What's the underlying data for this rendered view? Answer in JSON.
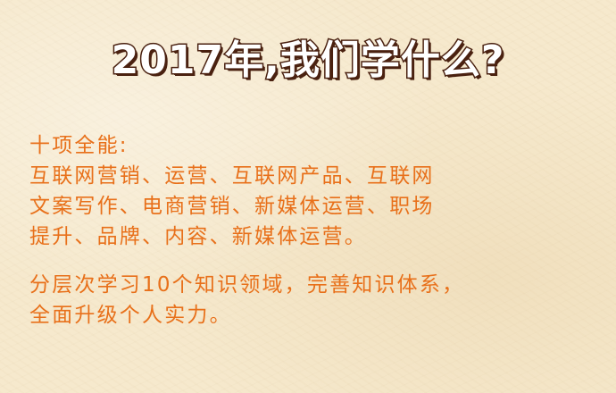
{
  "title": "2017年,我们学什么?",
  "section1": {
    "heading": "十项全能:",
    "line1": "互联网营销、运营、互联网产品、互联网",
    "line2": "文案写作、电商营销、新媒体运营、职场",
    "line3": "提升、品牌、内容、新媒体运营。"
  },
  "section2": {
    "line1": "分层次学习10个知识领域，完善知识体系，",
    "line2": "全面升级个人实力。"
  },
  "colors": {
    "background": "#f6e9cd",
    "body_text": "#e8701a",
    "title_fill": "#ffffff",
    "title_outline": "#4a2110"
  }
}
